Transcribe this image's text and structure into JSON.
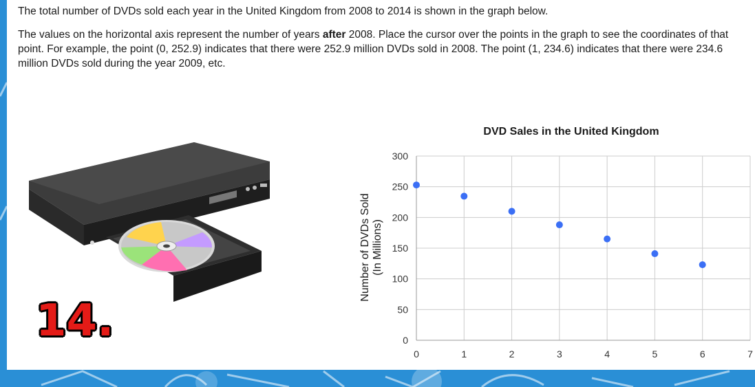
{
  "intro": {
    "line1": "The total number of DVDs sold each year in the United Kingdom from 2008 to 2014 is shown in the graph below.",
    "para2_pre": "The values on the horizontal axis represent the number of years ",
    "para2_bold": "after",
    "para2_post": " 2008. Place the cursor over the points in the graph to see the coordinates of that point. For example, the point (0, 252.9) indicates that there were 252.9 million DVDs sold in 2008. The point (1, 234.6) indicates that there were 234.6 million DVDs sold during the year 2009, etc."
  },
  "problem_number": "14.",
  "illustration": {
    "icon": "dvd-player-icon"
  },
  "colors": {
    "point": "#3b6ff5",
    "grid": "#cccccc",
    "label": "#e41b17"
  },
  "chart_data": {
    "type": "scatter",
    "title": "DVD Sales in the United Kingdom",
    "xlabel": "",
    "ylabel": "Number of DVDs Sold",
    "ylabel2": "(In Millions)",
    "xlim": [
      0,
      7
    ],
    "ylim": [
      0,
      300
    ],
    "xticks": [
      0,
      1,
      2,
      3,
      4,
      5,
      6,
      7
    ],
    "yticks": [
      0,
      50,
      100,
      150,
      200,
      250,
      300
    ],
    "grid": true,
    "x": [
      0,
      1,
      2,
      3,
      4,
      5,
      6
    ],
    "y": [
      252.9,
      234.6,
      210,
      188,
      165,
      141,
      123
    ]
  }
}
